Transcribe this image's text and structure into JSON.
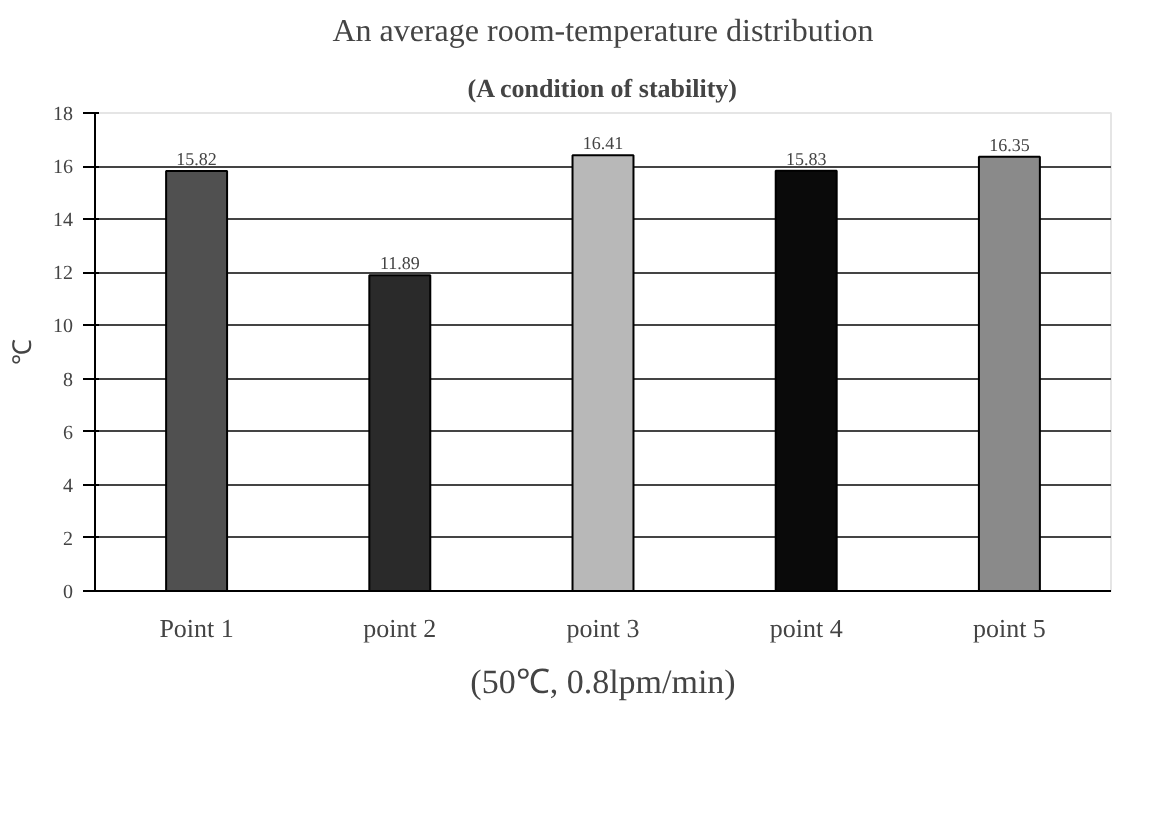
{
  "chart_data": {
    "type": "bar",
    "title": "An average room-temperature distribution",
    "subtitle": "(A condition of stability)",
    "ylabel": "℃",
    "categories": [
      "Point 1",
      "point 2",
      "point 3",
      "point 4",
      "point 5"
    ],
    "values": [
      15.82,
      11.89,
      16.41,
      15.83,
      16.35
    ],
    "value_labels": [
      "15.82",
      "11.89",
      "16.41",
      "15.83",
      "16.35"
    ],
    "colors": [
      "#505050",
      "#2a2a2a",
      "#b8b8b8",
      "#0a0a0a",
      "#8a8a8a"
    ],
    "ylim": [
      0,
      18
    ],
    "yticks": [
      0,
      2,
      4,
      6,
      8,
      10,
      12,
      14,
      16,
      18
    ],
    "grid": "y",
    "annotations": [
      "(50℃, 0.8lpm/min)"
    ]
  }
}
